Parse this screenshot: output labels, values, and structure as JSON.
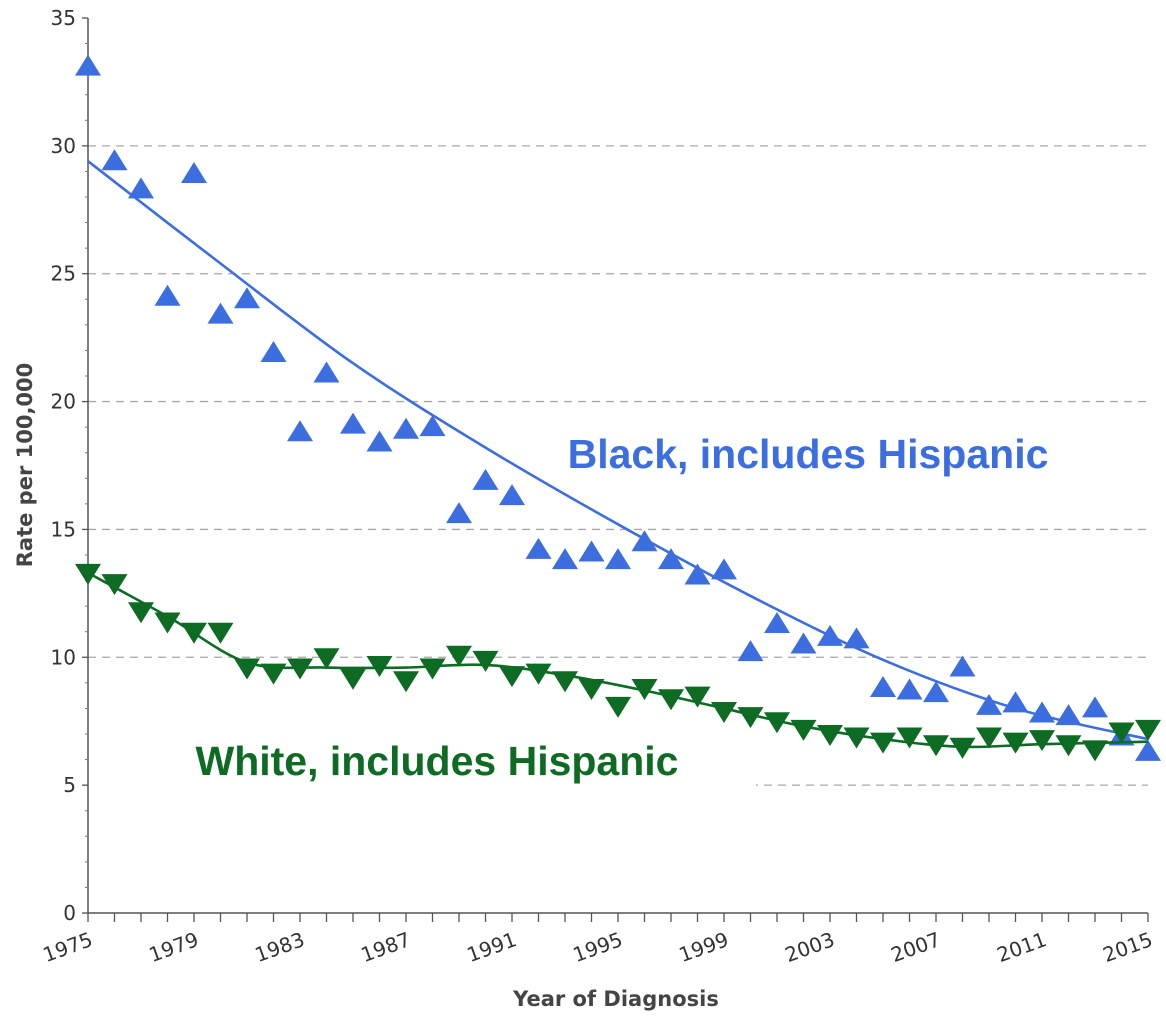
{
  "chart_data": {
    "type": "scatter",
    "title": "",
    "xlabel": "Year of Diagnosis",
    "ylabel": "Rate per 100,000",
    "xlim": [
      1975,
      2015
    ],
    "ylim": [
      0,
      35
    ],
    "x_ticks": [
      "1975",
      "1979",
      "1983",
      "1987",
      "1991",
      "1995",
      "1999",
      "2003",
      "2007",
      "2011",
      "2015"
    ],
    "y_ticks": [
      "0",
      "5",
      "10",
      "15",
      "20",
      "25",
      "30",
      "35"
    ],
    "grid": "horizontal dashed at 5, 25, 30 and partially at 10, 15, 20",
    "series": [
      {
        "name": "Black, includes Hispanic",
        "color": "#3d6ee0",
        "marker": "triangle-up",
        "x": [
          1975,
          1976,
          1977,
          1978,
          1979,
          1980,
          1981,
          1982,
          1983,
          1984,
          1985,
          1986,
          1987,
          1988,
          1989,
          1990,
          1991,
          1992,
          1993,
          1994,
          1995,
          1996,
          1997,
          1998,
          1999,
          2000,
          2001,
          2002,
          2003,
          2004,
          2005,
          2006,
          2007,
          2008,
          2009,
          2010,
          2011,
          2012,
          2013,
          2014,
          2015
        ],
        "values": [
          33.1,
          29.4,
          28.3,
          24.1,
          28.9,
          23.4,
          24.0,
          21.9,
          18.8,
          21.1,
          19.1,
          18.4,
          18.9,
          19.0,
          15.6,
          16.9,
          16.3,
          14.2,
          13.8,
          14.1,
          13.8,
          14.5,
          13.8,
          13.2,
          13.4,
          10.2,
          11.3,
          10.5,
          10.8,
          10.7,
          8.8,
          8.7,
          8.6,
          9.6,
          8.1,
          8.2,
          7.8,
          7.7,
          8.0,
          6.9,
          6.3
        ],
        "trend": {
          "x": [
            1975,
            1980,
            1985,
            1990,
            1995,
            2000,
            2005,
            2010,
            2015
          ],
          "values": [
            29.4,
            25.4,
            21.5,
            18.2,
            15.2,
            12.4,
            9.9,
            8.0,
            6.8
          ]
        }
      },
      {
        "name": "White, includes Hispanic",
        "color": "#0e6b23",
        "marker": "triangle-down",
        "x": [
          1975,
          1976,
          1977,
          1978,
          1979,
          1980,
          1981,
          1982,
          1983,
          1984,
          1985,
          1986,
          1987,
          1988,
          1989,
          1990,
          1991,
          1992,
          1993,
          1994,
          1995,
          1996,
          1997,
          1998,
          1999,
          2000,
          2001,
          2002,
          2003,
          2004,
          2005,
          2006,
          2007,
          2008,
          2009,
          2010,
          2011,
          2012,
          2013,
          2014,
          2015
        ],
        "values": [
          13.3,
          12.9,
          11.8,
          11.4,
          11.0,
          11.0,
          9.6,
          9.4,
          9.6,
          10.0,
          9.2,
          9.7,
          9.1,
          9.6,
          10.1,
          9.9,
          9.3,
          9.4,
          9.1,
          8.8,
          8.1,
          8.8,
          8.4,
          8.5,
          7.9,
          7.7,
          7.5,
          7.2,
          7.0,
          6.9,
          6.7,
          6.9,
          6.6,
          6.5,
          6.9,
          6.7,
          6.8,
          6.6,
          6.4,
          7.1,
          7.2
        ],
        "trend": {
          "x": [
            1975,
            1978,
            1981,
            1984,
            1987,
            1990,
            1993,
            1996,
            1999,
            2002,
            2005,
            2008,
            2011,
            2015
          ],
          "values": [
            13.3,
            11.6,
            9.8,
            9.6,
            9.6,
            9.7,
            9.3,
            8.7,
            8.0,
            7.3,
            6.8,
            6.5,
            6.6,
            6.7
          ]
        }
      }
    ]
  }
}
